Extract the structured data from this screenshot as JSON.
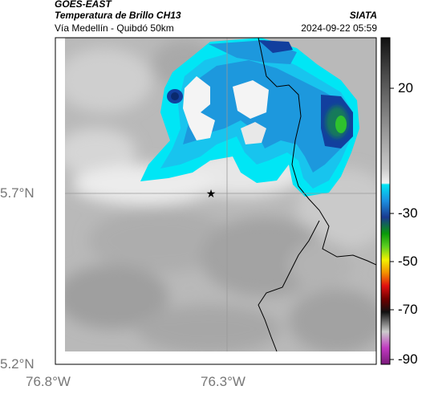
{
  "header": {
    "satellite": "GOES-EAST",
    "product": "Temperatura de Brillo CH13",
    "route": "Vía Medellín - Quibdó 50km",
    "org": "SIATA",
    "datetime": "2024-09-22 05:59"
  },
  "axes": {
    "lat_labels": [
      "5.7°N",
      "5.2°N"
    ],
    "lon_labels": [
      "76.8°W",
      "76.3°W"
    ]
  },
  "colorbar": {
    "labels": [
      "20",
      "-30",
      "-50",
      "-70",
      "-90"
    ],
    "colors": {
      "warm_gray_light": "#bdbdbd",
      "cold_cyan": "#00e6f5",
      "cold_blue": "#1a7fd0",
      "deep_blue": "#123f9e",
      "green": "#2ec22e",
      "yellow": "#f2f200",
      "red": "#e01010",
      "magenta": "#c03ac0"
    }
  },
  "marker": {
    "symbol": "★"
  },
  "icons": [
    "star-marker-icon"
  ]
}
